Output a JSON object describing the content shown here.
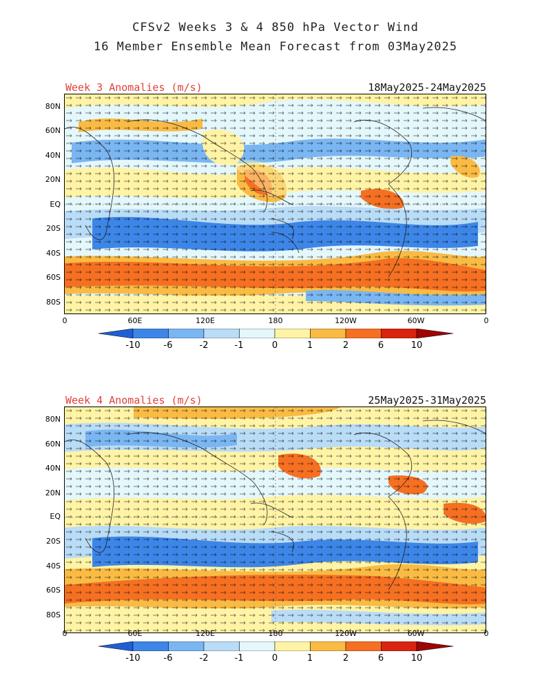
{
  "title": {
    "line1": "CFSv2 Weeks 3 & 4 850 hPa Vector Wind",
    "line2": "16 Member Ensemble Mean Forecast from 03May2025"
  },
  "panels": [
    {
      "label": "Week 3 Anomalies (m/s)",
      "dates": "18May2025-24May2025"
    },
    {
      "label": "Week 4 Anomalies (m/s)",
      "dates": "25May2025-31May2025"
    }
  ],
  "lat_ticks": [
    "80N",
    "60N",
    "40N",
    "20N",
    "EQ",
    "20S",
    "40S",
    "60S",
    "80S"
  ],
  "lon_ticks": [
    "0",
    "60E",
    "120E",
    "180",
    "120W",
    "60W",
    "0"
  ],
  "colorbar": {
    "labels": [
      "-10",
      "-6",
      "-2",
      "-1",
      "0",
      "1",
      "2",
      "6",
      "10"
    ],
    "colors": [
      "#1f5fd6",
      "#3d86e8",
      "#7ab6f2",
      "#b9dcf7",
      "#e4f7fb",
      "#fff3a6",
      "#f9bb44",
      "#f57022",
      "#d9240f",
      "#9e0505"
    ]
  },
  "colors": {
    "title_text": "#222222",
    "panel_label": "#e0403a",
    "frame": "#000000"
  }
}
